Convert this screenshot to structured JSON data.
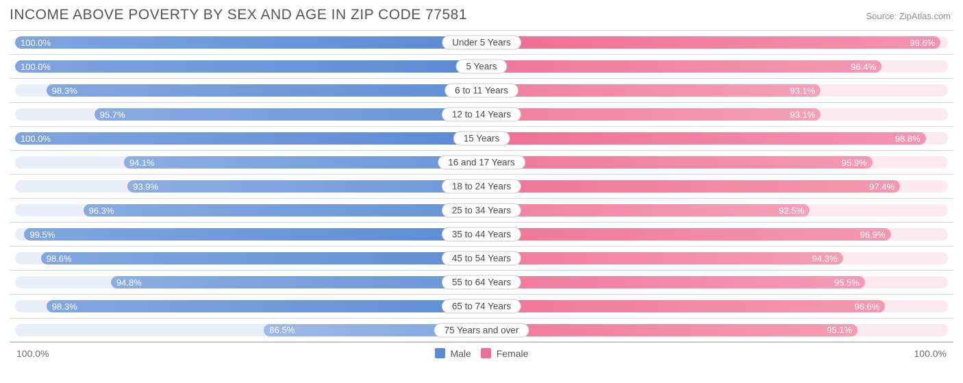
{
  "title": "INCOME ABOVE POVERTY BY SEX AND AGE IN ZIP CODE 77581",
  "source": "Source: ZipAtlas.com",
  "axis": {
    "left": "100.0%",
    "right": "100.0%"
  },
  "legend": {
    "male": "Male",
    "female": "Female"
  },
  "colors": {
    "male_track": "#e9eef9",
    "female_track": "#fdeaf0",
    "border": "#d7d7da",
    "male_from": "#7fa4df",
    "male_to": "#5b8bd4",
    "female_from": "#f492ae",
    "female_to": "#ee6d92",
    "alpha_min": 0.55,
    "value_text": "#ffffff",
    "title_text": "#555558",
    "source_text": "#8f8f94"
  },
  "scale": {
    "min": 75,
    "max": 100
  },
  "rows": [
    {
      "label": "Under 5 Years",
      "male": 100.0,
      "female": 99.6
    },
    {
      "label": "5 Years",
      "male": 100.0,
      "female": 96.4
    },
    {
      "label": "6 to 11 Years",
      "male": 98.3,
      "female": 93.1
    },
    {
      "label": "12 to 14 Years",
      "male": 95.7,
      "female": 93.1
    },
    {
      "label": "15 Years",
      "male": 100.0,
      "female": 98.8
    },
    {
      "label": "16 and 17 Years",
      "male": 94.1,
      "female": 95.9
    },
    {
      "label": "18 to 24 Years",
      "male": 93.9,
      "female": 97.4
    },
    {
      "label": "25 to 34 Years",
      "male": 96.3,
      "female": 92.5
    },
    {
      "label": "35 to 44 Years",
      "male": 99.5,
      "female": 96.9
    },
    {
      "label": "45 to 54 Years",
      "male": 98.6,
      "female": 94.3
    },
    {
      "label": "55 to 64 Years",
      "male": 94.8,
      "female": 95.5
    },
    {
      "label": "65 to 74 Years",
      "male": 98.3,
      "female": 96.6
    },
    {
      "label": "75 Years and over",
      "male": 86.5,
      "female": 95.1
    }
  ]
}
